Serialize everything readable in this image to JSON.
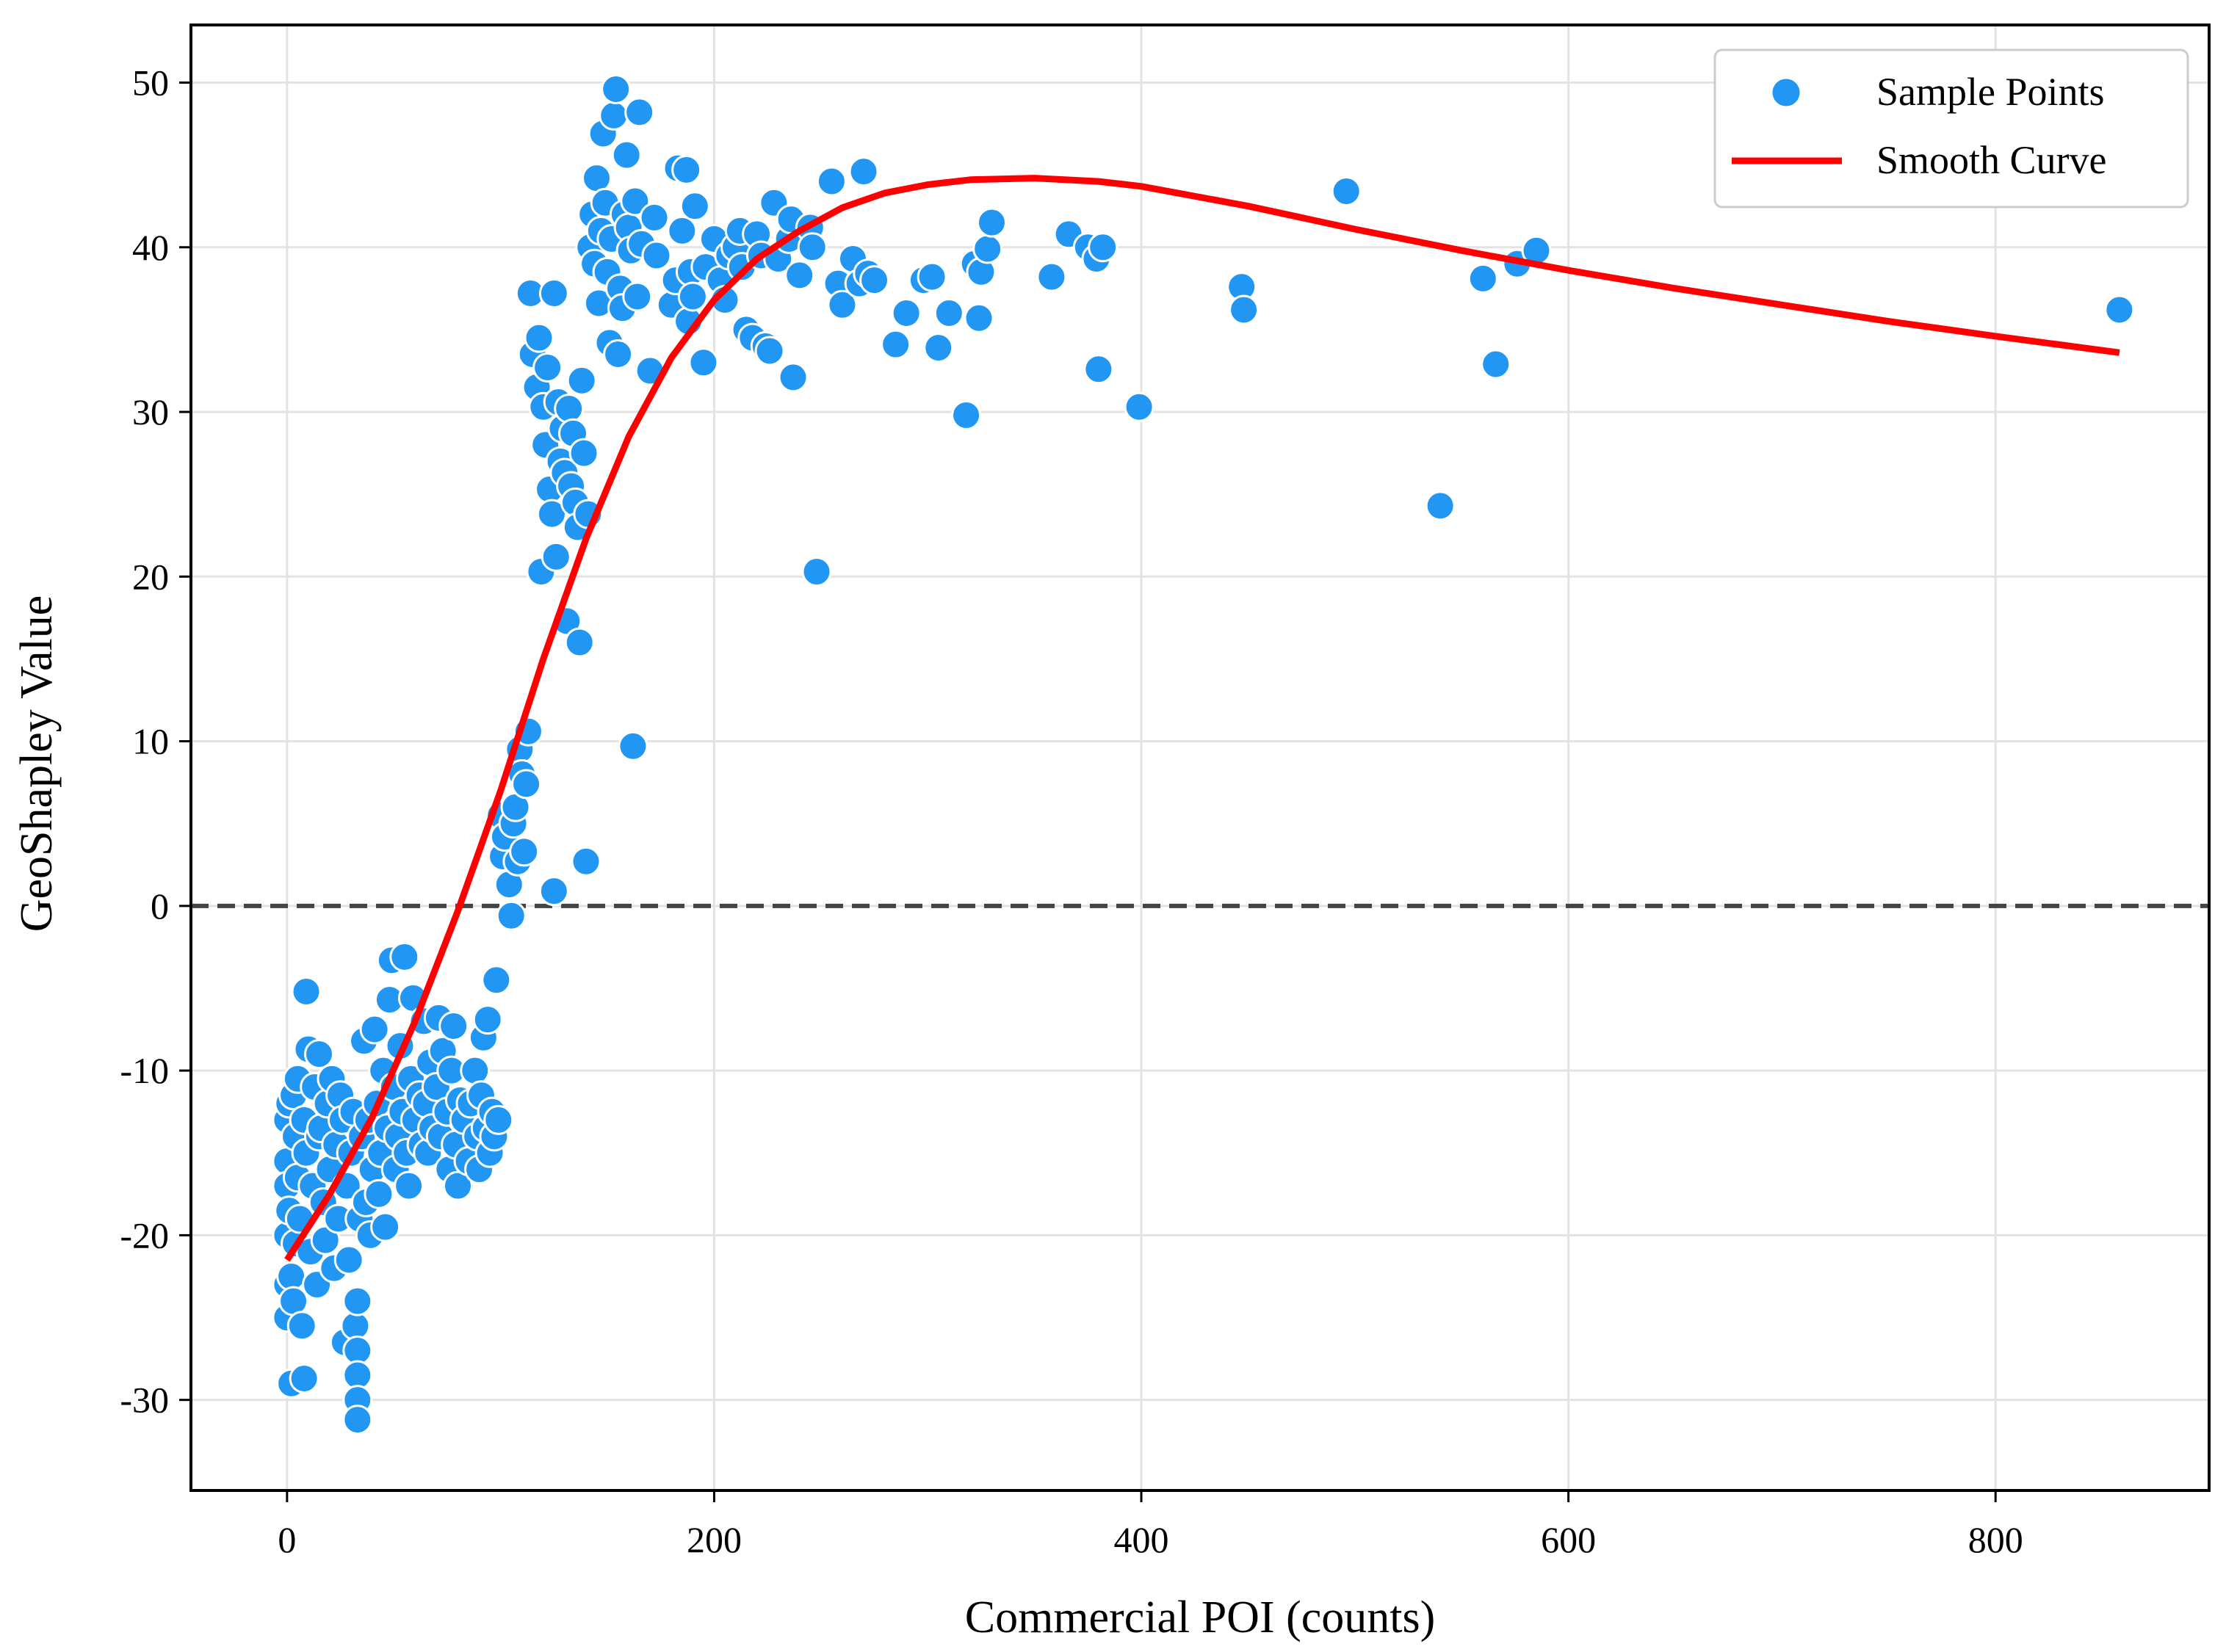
{
  "chart_data": {
    "type": "scatter",
    "title": "",
    "xlabel": "Commercial POI (counts)",
    "ylabel": "GeoShapley Value",
    "xlim": [
      -45,
      900
    ],
    "ylim": [
      -35.5,
      53.5
    ],
    "xticks": [
      0,
      200,
      400,
      600,
      800
    ],
    "yticks": [
      -30,
      -20,
      -10,
      0,
      10,
      20,
      30,
      40,
      50
    ],
    "grid": true,
    "reference_line": {
      "y": 0,
      "style": "dashed",
      "color": "#444444"
    },
    "legend": {
      "position": "top-right",
      "entries": [
        {
          "label": "Sample Points",
          "kind": "marker",
          "color": "#2196F3"
        },
        {
          "label": "Smooth Curve",
          "kind": "line",
          "color": "#FF0000"
        }
      ]
    },
    "series": [
      {
        "name": "Sample Points",
        "kind": "scatter",
        "color": "#2196F3",
        "edgecolor": "#ffffff",
        "points": [
          [
            0,
            -13
          ],
          [
            0,
            -15.5
          ],
          [
            0,
            -20
          ],
          [
            0,
            -23
          ],
          [
            0,
            -25
          ],
          [
            0,
            -17
          ],
          [
            1,
            -12
          ],
          [
            1,
            -18.5
          ],
          [
            2,
            -29
          ],
          [
            2,
            -22.5
          ],
          [
            3,
            -11.5
          ],
          [
            3,
            -24
          ],
          [
            4,
            -14
          ],
          [
            4,
            -20.5
          ],
          [
            5,
            -16.5
          ],
          [
            5,
            -10.5
          ],
          [
            6,
            -19
          ],
          [
            7,
            -25.5
          ],
          [
            8,
            -28.7
          ],
          [
            8,
            -13
          ],
          [
            9,
            -5.2
          ],
          [
            9,
            -15
          ],
          [
            10,
            -8.7
          ],
          [
            11,
            -21
          ],
          [
            12,
            -17
          ],
          [
            13,
            -11
          ],
          [
            14,
            -23
          ],
          [
            15,
            -14
          ],
          [
            15,
            -9
          ],
          [
            16,
            -13.5
          ],
          [
            17,
            -18
          ],
          [
            18,
            -20.3
          ],
          [
            19,
            -12
          ],
          [
            20,
            -16
          ],
          [
            21,
            -10.5
          ],
          [
            22,
            -22
          ],
          [
            23,
            -14.5
          ],
          [
            24,
            -19
          ],
          [
            25,
            -11.5
          ],
          [
            26,
            -13
          ],
          [
            27,
            -26.5
          ],
          [
            28,
            -17
          ],
          [
            29,
            -21.5
          ],
          [
            30,
            -15
          ],
          [
            31,
            -12.5
          ],
          [
            32,
            -25.5
          ],
          [
            33,
            -24
          ],
          [
            33,
            -27
          ],
          [
            33,
            -28.5
          ],
          [
            33,
            -30
          ],
          [
            33,
            -31.2
          ],
          [
            34,
            -19
          ],
          [
            35,
            -14
          ],
          [
            36,
            -8.2
          ],
          [
            37,
            -18
          ],
          [
            38,
            -13
          ],
          [
            39,
            -20
          ],
          [
            40,
            -16
          ],
          [
            41,
            -7.5
          ],
          [
            42,
            -12
          ],
          [
            43,
            -17.5
          ],
          [
            44,
            -15
          ],
          [
            45,
            -10
          ],
          [
            46,
            -19.5
          ],
          [
            47,
            -13.5
          ],
          [
            48,
            -5.7
          ],
          [
            49,
            -3.3
          ],
          [
            50,
            -11
          ],
          [
            51,
            -16
          ],
          [
            52,
            -14
          ],
          [
            53,
            -8.5
          ],
          [
            54,
            -12.5
          ],
          [
            55,
            -3.1
          ],
          [
            56,
            -15
          ],
          [
            57,
            -17
          ],
          [
            58,
            -10.5
          ],
          [
            59,
            -5.6
          ],
          [
            60,
            -13
          ],
          [
            62,
            -11.5
          ],
          [
            63,
            -14.5
          ],
          [
            64,
            -7
          ],
          [
            65,
            -12
          ],
          [
            66,
            -15
          ],
          [
            67,
            -9.5
          ],
          [
            68,
            -13.5
          ],
          [
            70,
            -11
          ],
          [
            71,
            -6.8
          ],
          [
            72,
            -14
          ],
          [
            73,
            -8.8
          ],
          [
            75,
            -12.5
          ],
          [
            76,
            -16
          ],
          [
            77,
            -10
          ],
          [
            78,
            -7.3
          ],
          [
            79,
            -14.5
          ],
          [
            80,
            -17
          ],
          [
            81,
            -11.8
          ],
          [
            83,
            -13
          ],
          [
            85,
            -15.5
          ],
          [
            86,
            -12
          ],
          [
            88,
            -10
          ],
          [
            89,
            -14
          ],
          [
            90,
            -16
          ],
          [
            91,
            -11.5
          ],
          [
            92,
            -8
          ],
          [
            93,
            -13.5
          ],
          [
            94,
            -6.9
          ],
          [
            95,
            -15
          ],
          [
            96,
            -12.5
          ],
          [
            97,
            -14
          ],
          [
            98,
            -4.5
          ],
          [
            99,
            -13
          ],
          [
            100,
            5.5
          ],
          [
            101,
            3
          ],
          [
            102,
            4.2
          ],
          [
            104,
            1.3
          ],
          [
            105,
            -0.6
          ],
          [
            106,
            5
          ],
          [
            107,
            6
          ],
          [
            108,
            2.7
          ],
          [
            109,
            9.5
          ],
          [
            110,
            8
          ],
          [
            111,
            3.3
          ],
          [
            112,
            7.4
          ],
          [
            113,
            10.6
          ],
          [
            114,
            37.2
          ],
          [
            115,
            33.5
          ],
          [
            117,
            31.5
          ],
          [
            118,
            34.5
          ],
          [
            119,
            20.3
          ],
          [
            120,
            30.3
          ],
          [
            121,
            28
          ],
          [
            122,
            32.7
          ],
          [
            123,
            25.3
          ],
          [
            124,
            23.8
          ],
          [
            125,
            0.9
          ],
          [
            125,
            37.2
          ],
          [
            126,
            21.2
          ],
          [
            127,
            30.6
          ],
          [
            128,
            27
          ],
          [
            129,
            29
          ],
          [
            130,
            26.3
          ],
          [
            131,
            17.3
          ],
          [
            132,
            30.2
          ],
          [
            133,
            25.5
          ],
          [
            134,
            28.7
          ],
          [
            135,
            24.5
          ],
          [
            136,
            23
          ],
          [
            137,
            16
          ],
          [
            138,
            31.9
          ],
          [
            139,
            27.5
          ],
          [
            140,
            2.7
          ],
          [
            141,
            23.8
          ],
          [
            142,
            40
          ],
          [
            143,
            42
          ],
          [
            144,
            39
          ],
          [
            145,
            44.2
          ],
          [
            146,
            36.6
          ],
          [
            147,
            41
          ],
          [
            148,
            46.9
          ],
          [
            149,
            42.7
          ],
          [
            150,
            38.5
          ],
          [
            151,
            34.2
          ],
          [
            152,
            40.5
          ],
          [
            153,
            48
          ],
          [
            154,
            49.6
          ],
          [
            155,
            33.5
          ],
          [
            156,
            37.5
          ],
          [
            157,
            36.3
          ],
          [
            158,
            42
          ],
          [
            159,
            45.6
          ],
          [
            160,
            41.2
          ],
          [
            161,
            39.8
          ],
          [
            162,
            9.7
          ],
          [
            163,
            42.8
          ],
          [
            164,
            37
          ],
          [
            165,
            48.2
          ],
          [
            166,
            40.2
          ],
          [
            170,
            32.5
          ],
          [
            172,
            41.8
          ],
          [
            173,
            39.5
          ],
          [
            180,
            36.5
          ],
          [
            182,
            38
          ],
          [
            183,
            44.8
          ],
          [
            185,
            41
          ],
          [
            187,
            44.7
          ],
          [
            188,
            35.5
          ],
          [
            189,
            38.5
          ],
          [
            190,
            37
          ],
          [
            191,
            42.5
          ],
          [
            195,
            33
          ],
          [
            196,
            38.8
          ],
          [
            200,
            40.5
          ],
          [
            203,
            38
          ],
          [
            205,
            36.8
          ],
          [
            207,
            39.5
          ],
          [
            210,
            40
          ],
          [
            212,
            41
          ],
          [
            213,
            38.8
          ],
          [
            215,
            35
          ],
          [
            218,
            34.5
          ],
          [
            220,
            40.8
          ],
          [
            222,
            39.5
          ],
          [
            224,
            34
          ],
          [
            226,
            33.7
          ],
          [
            228,
            42.7
          ],
          [
            230,
            39.3
          ],
          [
            235,
            40.5
          ],
          [
            236,
            41.7
          ],
          [
            237,
            32.1
          ],
          [
            240,
            38.3
          ],
          [
            245,
            41.2
          ],
          [
            246,
            40
          ],
          [
            248,
            20.3
          ],
          [
            255,
            44
          ],
          [
            258,
            37.8
          ],
          [
            260,
            36.5
          ],
          [
            265,
            39.3
          ],
          [
            268,
            37.8
          ],
          [
            270,
            44.6
          ],
          [
            272,
            38.4
          ],
          [
            275,
            38
          ],
          [
            285,
            34.1
          ],
          [
            290,
            36
          ],
          [
            298,
            38
          ],
          [
            302,
            38.2
          ],
          [
            305,
            33.9
          ],
          [
            310,
            36
          ],
          [
            318,
            29.8
          ],
          [
            322,
            39
          ],
          [
            324,
            35.7
          ],
          [
            325,
            38.5
          ],
          [
            328,
            39.9
          ],
          [
            330,
            41.5
          ],
          [
            358,
            38.2
          ],
          [
            366,
            40.8
          ],
          [
            375,
            40
          ],
          [
            380,
            32.6
          ],
          [
            379,
            39.3
          ],
          [
            382,
            40
          ],
          [
            399,
            30.3
          ],
          [
            447,
            37.6
          ],
          [
            448,
            36.2
          ],
          [
            496,
            43.4
          ],
          [
            540,
            24.3
          ],
          [
            560,
            38.1
          ],
          [
            566,
            32.9
          ],
          [
            576,
            39
          ],
          [
            585,
            39.8
          ],
          [
            858,
            36.2
          ]
        ]
      },
      {
        "name": "Smooth Curve",
        "kind": "line",
        "color": "#FF0000",
        "points": [
          [
            0,
            -21.5
          ],
          [
            20,
            -17.5
          ],
          [
            40,
            -12.8
          ],
          [
            60,
            -7
          ],
          [
            80,
            -0.3
          ],
          [
            100,
            7
          ],
          [
            120,
            15
          ],
          [
            140,
            22.3
          ],
          [
            160,
            28.5
          ],
          [
            180,
            33.3
          ],
          [
            200,
            36.8
          ],
          [
            220,
            39.3
          ],
          [
            240,
            41
          ],
          [
            260,
            42.4
          ],
          [
            280,
            43.3
          ],
          [
            300,
            43.8
          ],
          [
            320,
            44.1
          ],
          [
            350,
            44.2
          ],
          [
            380,
            44
          ],
          [
            400,
            43.7
          ],
          [
            450,
            42.5
          ],
          [
            500,
            41.1
          ],
          [
            550,
            39.8
          ],
          [
            600,
            38.6
          ],
          [
            650,
            37.5
          ],
          [
            700,
            36.5
          ],
          [
            750,
            35.5
          ],
          [
            800,
            34.6
          ],
          [
            858,
            33.6
          ]
        ]
      }
    ]
  }
}
